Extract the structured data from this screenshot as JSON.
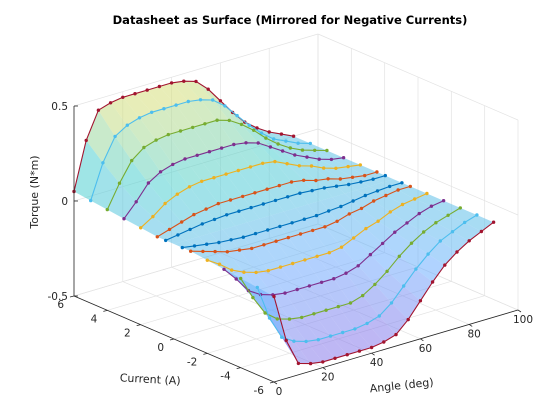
{
  "chart_data": {
    "type": "surface",
    "title": "Datasheet as Surface (Mirrored for Negative Currents)",
    "xlabel": "Angle (deg)",
    "ylabel": "Current (A)",
    "zlabel": "Torque (N*m)",
    "xlim": [
      0,
      100
    ],
    "ylim": [
      -6,
      6
    ],
    "zlim": [
      -0.5,
      0.5
    ],
    "xticks": [
      "0",
      "20",
      "40",
      "60",
      "80",
      "100"
    ],
    "yticks": [
      "6",
      "4",
      "2",
      "0",
      "-2",
      "-4",
      "-6"
    ],
    "zticks": [
      "0.5",
      "0",
      "-0.5"
    ],
    "grid": true,
    "surface_colormap": [
      "#8f6fe6",
      "#6fb0ff",
      "#4fd0d0",
      "#f2e26a"
    ],
    "angle": [
      0,
      5,
      10,
      15,
      20,
      25,
      30,
      35,
      40,
      45,
      50,
      55,
      60,
      65,
      70,
      75,
      80,
      85,
      90
    ],
    "series": [
      {
        "current": 6,
        "color": "#a2142f",
        "torque": [
          0.05,
          0.3,
          0.44,
          0.46,
          0.47,
          0.47,
          0.47,
          0.47,
          0.47,
          0.46,
          0.44,
          0.38,
          0.3,
          0.22,
          0.15,
          0.1,
          0.06,
          0.03,
          0.0
        ]
      },
      {
        "current": 5,
        "color": "#4dbeee",
        "torque": [
          0.04,
          0.22,
          0.34,
          0.38,
          0.4,
          0.41,
          0.41,
          0.41,
          0.41,
          0.4,
          0.38,
          0.33,
          0.26,
          0.19,
          0.13,
          0.08,
          0.05,
          0.02,
          0.0
        ]
      },
      {
        "current": 4,
        "color": "#77ac30",
        "torque": [
          0.03,
          0.15,
          0.25,
          0.3,
          0.32,
          0.33,
          0.33,
          0.33,
          0.33,
          0.33,
          0.31,
          0.27,
          0.22,
          0.16,
          0.11,
          0.07,
          0.04,
          0.02,
          0.0
        ]
      },
      {
        "current": 3,
        "color": "#7e2f8e",
        "torque": [
          0.02,
          0.09,
          0.17,
          0.21,
          0.23,
          0.24,
          0.24,
          0.24,
          0.24,
          0.24,
          0.23,
          0.21,
          0.17,
          0.13,
          0.09,
          0.06,
          0.03,
          0.01,
          0.0
        ]
      },
      {
        "current": 2,
        "color": "#edb120",
        "torque": [
          0.01,
          0.05,
          0.1,
          0.13,
          0.15,
          0.16,
          0.16,
          0.16,
          0.16,
          0.16,
          0.16,
          0.15,
          0.12,
          0.09,
          0.07,
          0.04,
          0.02,
          0.01,
          0.0
        ]
      },
      {
        "current": 1,
        "color": "#d95319",
        "torque": [
          0.0,
          0.02,
          0.04,
          0.06,
          0.07,
          0.08,
          0.08,
          0.08,
          0.08,
          0.08,
          0.08,
          0.08,
          0.07,
          0.05,
          0.04,
          0.02,
          0.01,
          0.0,
          0.0
        ]
      },
      {
        "current": 0.5,
        "color": "#0072bd",
        "torque": [
          0.0,
          0.01,
          0.02,
          0.03,
          0.035,
          0.04,
          0.04,
          0.04,
          0.04,
          0.04,
          0.04,
          0.04,
          0.035,
          0.03,
          0.02,
          0.01,
          0.005,
          0.0,
          0.0
        ]
      }
    ]
  }
}
